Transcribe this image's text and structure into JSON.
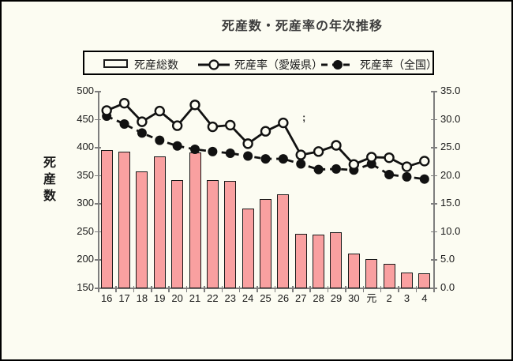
{
  "title": "死産数・死産率の年次推移",
  "stray_mark": ";",
  "legend": {
    "items": [
      {
        "label": "死産総数",
        "swatch": "pink-bar"
      },
      {
        "label": "死産率（愛媛県）",
        "swatch": "solid-line-open-circle"
      },
      {
        "label": "死産率（全国）",
        "swatch": "dashed-line-filled-circle"
      }
    ]
  },
  "chart_data": {
    "type": "combo-bar-line",
    "title": "死産数・死産率の年次推移",
    "categories": [
      "16",
      "17",
      "18",
      "19",
      "20",
      "21",
      "22",
      "23",
      "24",
      "25",
      "26",
      "27",
      "28",
      "29",
      "30",
      "元",
      "2",
      "3",
      "4"
    ],
    "series": [
      {
        "name": "死産総数",
        "type": "bar",
        "axis": "left",
        "values": [
          394,
          392,
          356,
          383,
          341,
          390,
          341,
          340,
          291,
          307,
          316,
          245,
          244,
          249,
          210,
          200,
          192,
          177,
          175
        ]
      },
      {
        "name": "死産率（愛媛県）",
        "type": "line",
        "marker": "open-circle",
        "axis": "right",
        "values": [
          31.5,
          32.8,
          29.5,
          31.4,
          28.8,
          32.5,
          28.6,
          28.9,
          25.6,
          27.8,
          29.3,
          23.6,
          24.2,
          25.3,
          21.9,
          23.2,
          23.1,
          21.5,
          22.5
        ]
      },
      {
        "name": "死産率（全国）",
        "type": "line",
        "style": "dashed",
        "marker": "filled-circle",
        "axis": "right",
        "values": [
          30.5,
          29.1,
          27.5,
          26.2,
          25.2,
          24.6,
          24.2,
          23.9,
          23.4,
          22.9,
          22.9,
          22.0,
          21.0,
          21.1,
          20.9,
          22.0,
          20.1,
          19.7,
          19.3
        ]
      }
    ],
    "left_axis": {
      "title": "死産数",
      "min": 150,
      "max": 500,
      "step": 50,
      "tick_labels": [
        "500",
        "450",
        "400",
        "350",
        "300",
        "250",
        "200",
        "150"
      ]
    },
    "right_axis": {
      "min": 0,
      "max": 35,
      "step": 5,
      "tick_labels": [
        "35.0",
        "30.0",
        "25.0",
        "20.0",
        "15.0",
        "10.0",
        "5.0",
        "0.0"
      ]
    },
    "legend_position": "top",
    "grid": false,
    "colors": {
      "bar_fill": "#F9A0A0",
      "bar_border": "#1A1A1A",
      "line_color": "#111111",
      "axis_color": "#7E7E7E",
      "background": "#FCFCF2"
    }
  }
}
